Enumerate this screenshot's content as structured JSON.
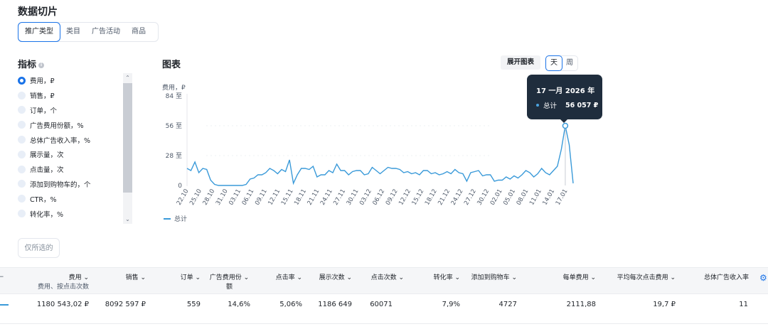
{
  "page": {
    "title": "数据切片"
  },
  "tabs": [
    "推广类型",
    "类目",
    "广告活动",
    "商品"
  ],
  "metrics_panel": {
    "title": "指标",
    "items": [
      "费用，₽",
      "销售，₽",
      "订单，个",
      "广告费用份额，%",
      "总体广告收入率，%",
      "展示量，次",
      "点击量，次",
      "添加到购物车的，个",
      "CTR，%",
      "转化率，%"
    ]
  },
  "only_selected_label": "仅所选的",
  "chart_header": {
    "title": "图表",
    "expand_label": "展开图表",
    "day_label": "天",
    "week_label": "周"
  },
  "tooltip": {
    "date": "17 一月 2026 年",
    "label": "总计",
    "value": "56 057 ₽"
  },
  "colors": {
    "accent": "#1a73e8",
    "line": "#3a9ad9"
  },
  "chart_data": {
    "type": "line",
    "ylabel": "费用，₽",
    "y_ticks": [
      "84 至",
      "56 至",
      "28 至",
      "0"
    ],
    "ylim": [
      0,
      84
    ],
    "x_tick_labels": [
      "22.10",
      "25.10",
      "28.10",
      "31.10",
      "03.11",
      "06.11",
      "09.11",
      "12.11",
      "15.11",
      "18.11",
      "21.11",
      "24.11",
      "27.11",
      "30.11",
      "03.12",
      "06.12",
      "09.12",
      "12.12",
      "15.12",
      "18.12",
      "21.12",
      "24.12",
      "27.12",
      "30.12",
      "02.01",
      "05.01",
      "08.01",
      "11.01",
      "14.01",
      "17.01"
    ],
    "legend": "总计",
    "series": [
      {
        "name": "总计",
        "values": [
          16,
          14,
          22,
          12,
          16,
          15,
          5,
          1,
          0,
          0,
          0,
          0,
          0,
          0,
          0,
          1,
          6,
          7,
          10,
          10,
          12,
          16,
          14,
          11,
          15,
          13,
          24,
          2,
          10,
          16,
          16,
          15,
          18,
          8,
          10,
          10,
          14,
          12,
          20,
          14,
          14,
          10,
          13,
          14,
          14,
          10,
          11,
          17,
          14,
          11,
          14,
          17,
          16,
          16,
          15,
          12,
          13,
          11,
          12,
          10,
          14,
          14,
          11,
          12,
          10,
          11,
          13,
          11,
          15,
          12,
          11,
          4,
          12,
          13,
          14,
          9,
          10,
          10,
          4,
          5,
          5,
          8,
          6,
          9,
          7,
          10,
          14,
          12,
          8,
          11,
          16,
          12,
          10,
          14,
          18,
          34,
          56,
          38,
          2
        ]
      }
    ]
  },
  "table": {
    "headers": [
      {
        "label": "费用",
        "sub": "费用、按点击次数"
      },
      {
        "label": "销售"
      },
      {
        "label": "订单"
      },
      {
        "label": "广告费用份",
        "sub": "额"
      },
      {
        "label": "点击率"
      },
      {
        "label": "展示次数"
      },
      {
        "label": "点击次数"
      },
      {
        "label": "转化率"
      },
      {
        "label": "添加到购物车"
      },
      {
        "label": "每单费用"
      },
      {
        "label": "平均每次点击费用"
      },
      {
        "label": "总体广告收入率"
      }
    ],
    "rows": [
      [
        "1180 543,02 ₽",
        "8092 597 ₽",
        "559",
        "14,6%",
        "5,06%",
        "1186 649",
        "60071",
        "7,9%",
        "4727",
        "2111,88",
        "19,7 ₽",
        "11"
      ]
    ]
  }
}
